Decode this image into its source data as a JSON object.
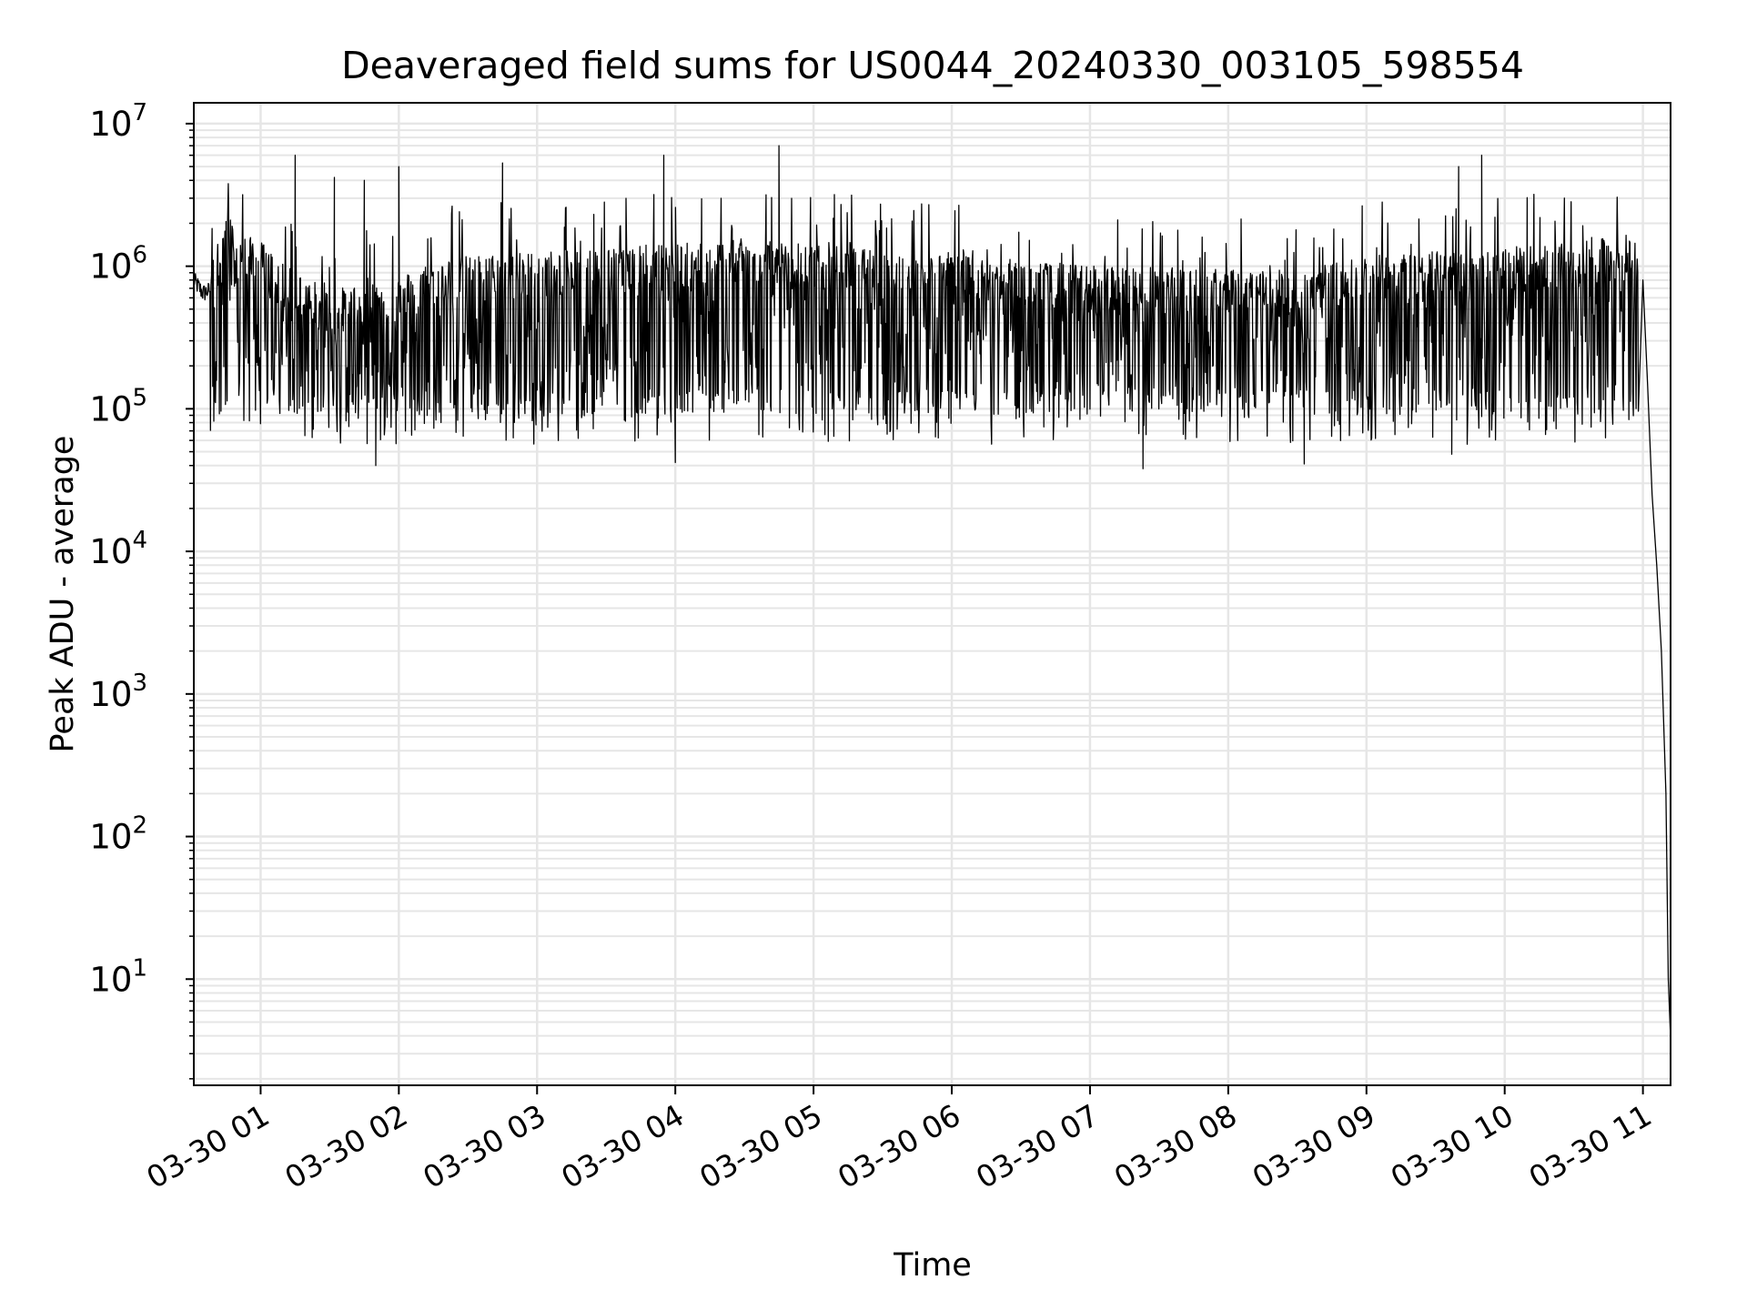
{
  "chart_data": {
    "type": "line",
    "title": "Deaveraged field sums for US0044_20240330_003105_598554",
    "xlabel": "Time",
    "ylabel": "Peak ADU - average",
    "y_scale": "log",
    "ylim": [
      1.8,
      14000000
    ],
    "xlim": [
      "2024-03-30 00:31",
      "2024-03-30 11:12"
    ],
    "x_ticks": [
      "03-30 01",
      "03-30 02",
      "03-30 03",
      "03-30 04",
      "03-30 05",
      "03-30 06",
      "03-30 07",
      "03-30 08",
      "03-30 09",
      "03-30 10",
      "03-30 11"
    ],
    "y_ticks": [
      {
        "base": "10",
        "exp": "1",
        "value": 10
      },
      {
        "base": "10",
        "exp": "2",
        "value": 100
      },
      {
        "base": "10",
        "exp": "3",
        "value": 1000
      },
      {
        "base": "10",
        "exp": "4",
        "value": 10000
      },
      {
        "base": "10",
        "exp": "5",
        "value": 100000
      },
      {
        "base": "10",
        "exp": "6",
        "value": 1000000
      },
      {
        "base": "10",
        "exp": "7",
        "value": 10000000
      }
    ],
    "grid": true,
    "line_color": "#000000",
    "grid_color": "#e6e6e6",
    "series": [
      {
        "x": [
          "2024-03-30 00:31",
          "2024-03-30 00:35",
          "2024-03-30 00:40",
          "2024-03-30 00:45",
          "2024-03-30 00:50",
          "2024-03-30 01:00",
          "2024-03-30 01:10",
          "2024-03-30 01:20",
          "2024-03-30 01:30",
          "2024-03-30 01:45",
          "2024-03-30 02:00",
          "2024-03-30 02:15",
          "2024-03-30 02:30",
          "2024-03-30 03:00",
          "2024-03-30 03:30",
          "2024-03-30 04:00",
          "2024-03-30 04:30",
          "2024-03-30 05:00",
          "2024-03-30 05:30",
          "2024-03-30 06:00",
          "2024-03-30 06:30",
          "2024-03-30 07:00",
          "2024-03-30 07:30",
          "2024-03-30 08:00",
          "2024-03-30 08:30",
          "2024-03-30 09:00",
          "2024-03-30 09:30",
          "2024-03-30 10:00",
          "2024-03-30 10:30",
          "2024-03-30 10:55",
          "2024-03-30 11:00",
          "2024-03-30 11:02",
          "2024-03-30 11:04",
          "2024-03-30 11:06",
          "2024-03-30 11:08",
          "2024-03-30 11:10",
          "2024-03-30 11:11",
          "2024-03-30 11:12"
        ],
        "y": [
          800000,
          650000,
          700000,
          1500000,
          1000000,
          900000,
          600000,
          500000,
          400000,
          450000,
          500000,
          650000,
          700000,
          750000,
          800000,
          850000,
          900000,
          850000,
          750000,
          700000,
          650000,
          600000,
          580000,
          560000,
          550000,
          700000,
          750000,
          800000,
          850000,
          1000000,
          800000,
          150000,
          25000,
          8000,
          2000,
          200,
          10,
          3.8
        ],
        "peaks": [
          {
            "x": "2024-03-30 01:15",
            "y": 6000000
          },
          {
            "x": "2024-03-30 01:32",
            "y": 4200000
          },
          {
            "x": "2024-03-30 01:45",
            "y": 4000000
          },
          {
            "x": "2024-03-30 02:00",
            "y": 5000000
          },
          {
            "x": "2024-03-30 02:45",
            "y": 5300000
          },
          {
            "x": "2024-03-30 03:55",
            "y": 6000000
          },
          {
            "x": "2024-03-30 04:45",
            "y": 7000000
          },
          {
            "x": "2024-03-30 09:40",
            "y": 5000000
          },
          {
            "x": "2024-03-30 09:50",
            "y": 6000000
          }
        ],
        "troughs": [
          {
            "x": "2024-03-30 01:50",
            "y": 40000
          },
          {
            "x": "2024-03-30 04:00",
            "y": 42000
          },
          {
            "x": "2024-03-30 07:23",
            "y": 38000
          },
          {
            "x": "2024-03-30 08:33",
            "y": 41000
          },
          {
            "x": "2024-03-30 09:37",
            "y": 48000
          }
        ],
        "typical_band_low": 70000,
        "typical_band_high": 1600000
      }
    ]
  }
}
